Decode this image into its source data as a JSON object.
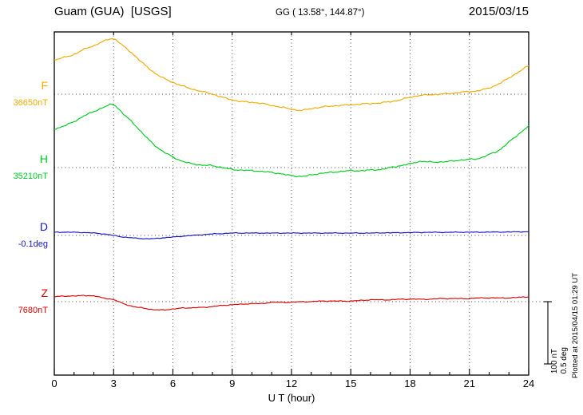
{
  "header": {
    "station": "Guam (GUA)  [USGS]",
    "coords": "GG ( 13.58°, 144.87°)",
    "date": "2015/03/15"
  },
  "footer": {
    "xlabel": "U T (hour)"
  },
  "side": {
    "plotted_at": "Plotted at 2015/04/15 01:29 UT",
    "scale_nt": "100 nT",
    "scale_deg": "0.5 deg"
  },
  "chart_data": {
    "type": "line",
    "title": "Guam (GUA) [USGS] magnetogram",
    "subtitle": "GG ( 13.58°, 144.87°)",
    "date": "2015/03/15",
    "xlabel": "U T (hour)",
    "xlim": [
      0,
      24
    ],
    "x_ticks": [
      0,
      3,
      6,
      9,
      12,
      15,
      18,
      21,
      24
    ],
    "grid": "dotted vertical lines at 3-hour ticks; dotted horizontal line at each channel baseline",
    "legend_position": "left margin channel labels",
    "scale_bar": {
      "nT": 100,
      "deg": 0.5
    },
    "x_hours": [
      0,
      0.5,
      1,
      1.5,
      2,
      2.5,
      3,
      3.5,
      4,
      4.5,
      5,
      5.5,
      6,
      6.5,
      7,
      7.5,
      8,
      8.5,
      9,
      9.5,
      10,
      10.5,
      11,
      11.5,
      12,
      12.5,
      13,
      13.5,
      14,
      14.5,
      15,
      15.5,
      16,
      16.5,
      17,
      17.5,
      18,
      18.5,
      19,
      19.5,
      20,
      20.5,
      21,
      21.5,
      22,
      22.5,
      23,
      23.5,
      24
    ],
    "series": [
      {
        "name": "F",
        "unit": "nT",
        "baseline": 36650,
        "baseline_label": "36650nT",
        "color": "#f0ab00",
        "values": [
          36705,
          36709,
          36714,
          36722,
          36728,
          36735,
          36739,
          36727,
          36714,
          36699,
          36686,
          36676,
          36669,
          36663,
          36658,
          36654,
          36650,
          36645,
          36641,
          36638,
          36637,
          36635,
          36632,
          36629,
          36626,
          36624,
          36627,
          36629,
          36631,
          36632,
          36633,
          36634,
          36635,
          36636,
          36638,
          36641,
          36645,
          36648,
          36649,
          36650,
          36651,
          36653,
          36654,
          36656,
          36660,
          36667,
          36676,
          36686,
          36696
        ]
      },
      {
        "name": "H",
        "unit": "nT",
        "baseline": 35210,
        "baseline_label": "35210nT",
        "color": "#00cc22",
        "values": [
          35272,
          35277,
          35284,
          35293,
          35300,
          35307,
          35311,
          35296,
          35281,
          35264,
          35248,
          35236,
          35227,
          35220,
          35216,
          35214,
          35213,
          35210,
          35207,
          35206,
          35205,
          35204,
          35202,
          35200,
          35197,
          35196,
          35198,
          35201,
          35202,
          35204,
          35205,
          35205,
          35206,
          35207,
          35210,
          35213,
          35216,
          35220,
          35219,
          35219,
          35220,
          35222,
          35223,
          35225,
          35231,
          35238,
          35251,
          35264,
          35277
        ]
      },
      {
        "name": "D",
        "unit": "deg",
        "baseline": -0.1,
        "baseline_label": "-0.1deg",
        "color": "#1515cc",
        "values": [
          -0.074,
          -0.074,
          -0.075,
          -0.077,
          -0.081,
          -0.088,
          -0.1,
          -0.113,
          -0.12,
          -0.126,
          -0.126,
          -0.119,
          -0.113,
          -0.106,
          -0.1,
          -0.094,
          -0.088,
          -0.085,
          -0.081,
          -0.081,
          -0.081,
          -0.081,
          -0.081,
          -0.081,
          -0.081,
          -0.081,
          -0.081,
          -0.081,
          -0.081,
          -0.081,
          -0.081,
          -0.081,
          -0.081,
          -0.079,
          -0.079,
          -0.078,
          -0.077,
          -0.076,
          -0.075,
          -0.075,
          -0.075,
          -0.074,
          -0.074,
          -0.074,
          -0.073,
          -0.073,
          -0.072,
          -0.071,
          -0.07
        ]
      },
      {
        "name": "Z",
        "unit": "nT",
        "baseline": 7680,
        "baseline_label": "7680nT",
        "color": "#dd0000",
        "values": [
          7688,
          7689,
          7689,
          7690,
          7689,
          7686,
          7683,
          7677,
          7672,
          7670,
          7667,
          7667,
          7668,
          7670,
          7670,
          7671,
          7672,
          7674,
          7675,
          7676,
          7677,
          7677,
          7679,
          7679,
          7679,
          7680,
          7680,
          7681,
          7681,
          7681,
          7681,
          7682,
          7683,
          7683,
          7683,
          7684,
          7684,
          7684,
          7684,
          7685,
          7685,
          7685,
          7685,
          7686,
          7686,
          7686,
          7686,
          7687,
          7688
        ]
      }
    ]
  }
}
